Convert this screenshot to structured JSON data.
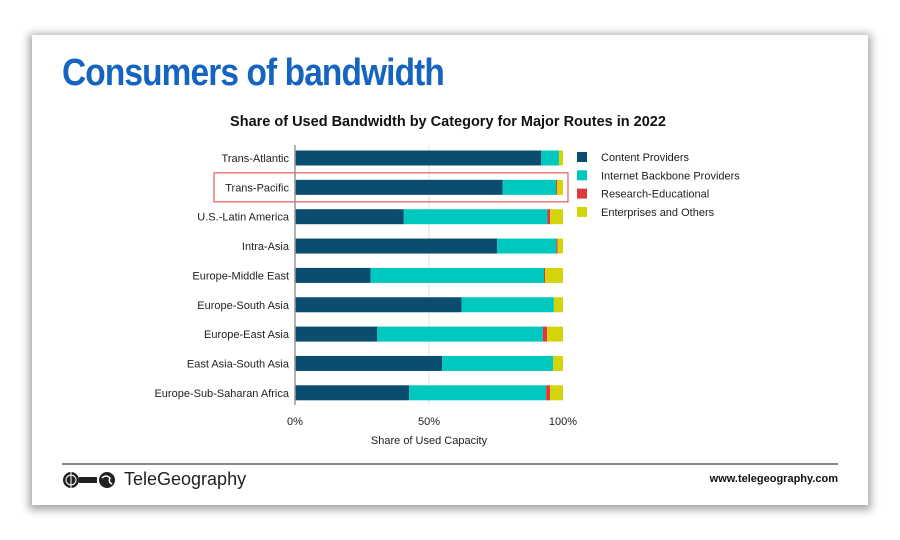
{
  "page": {
    "title": "Consumers of bandwidth",
    "brand": "TeleGeography",
    "url": "www.telegeography.com"
  },
  "chart_data": {
    "type": "bar",
    "orientation": "horizontal",
    "stacked": true,
    "title": "Share of Used Bandwidth by Category for Major Routes in 2022",
    "xlabel": "Share of Used Capacity",
    "ylabel": "",
    "xlim": [
      0,
      100
    ],
    "xticks": [
      "0%",
      "50%",
      "100%"
    ],
    "grid": "vertical at 50%",
    "legend": "right",
    "highlighted_category": "Trans-Pacific",
    "categories": [
      "Trans-Atlantic",
      "Trans-Pacific",
      "U.S.-Latin America",
      "Intra-Asia",
      "Europe-Middle East",
      "Europe-South Asia",
      "Europe-East Asia",
      "East Asia-South Asia",
      "Europe-Sub-Saharan Africa"
    ],
    "series": [
      {
        "name": "Content Providers",
        "color": "#0b4d6e",
        "values": [
          91.9,
          77.5,
          40.6,
          75.4,
          28.2,
          62.2,
          30.7,
          54.9,
          42.6
        ]
      },
      {
        "name": "Internet Backbone Providers",
        "color": "#00c8be",
        "values": [
          6.6,
          19.9,
          53.6,
          22.1,
          64.7,
          34.4,
          61.8,
          41.4,
          51.1
        ]
      },
      {
        "name": "Research-Educational",
        "color": "#e0383a",
        "values": [
          0.0,
          0.4,
          1.0,
          0.5,
          0.4,
          0.0,
          1.6,
          0.0,
          1.5
        ]
      },
      {
        "name": "Enterprises and Others",
        "color": "#d4d40a",
        "values": [
          1.5,
          2.2,
          4.8,
          2.0,
          6.7,
          3.4,
          5.9,
          3.7,
          4.8
        ]
      }
    ]
  }
}
